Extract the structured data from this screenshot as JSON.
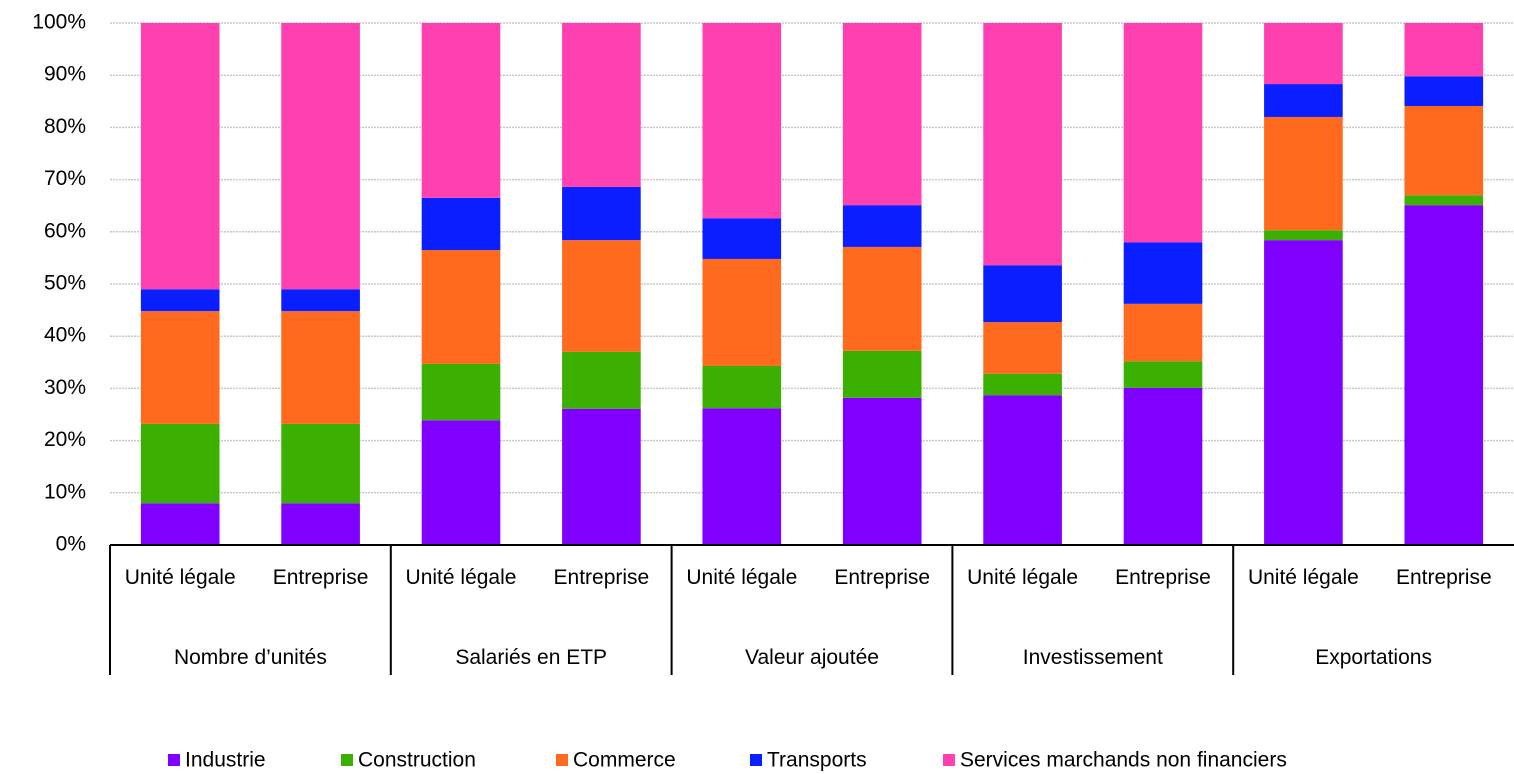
{
  "chart_data": {
    "type": "stacked_bar",
    "categories": [
      "Unité légale",
      "Entreprise",
      "Unité légale",
      "Entreprise",
      "Unité légale",
      "Entreprise",
      "Unité légale",
      "Entreprise",
      "Unité légale",
      "Entreprise"
    ],
    "groups": [
      "Nombre d’unités",
      "Salariés en ETP",
      "Valeur ajoutée",
      "Investissement",
      "Exportations"
    ],
    "series": [
      {
        "name": "Industrie",
        "color": "#8000ff",
        "values": [
          8.0,
          8.0,
          23.9,
          26.1,
          26.2,
          28.2,
          28.7,
          30.1,
          58.4,
          65.1
        ]
      },
      {
        "name": "Construction",
        "color": "#3cb000",
        "values": [
          15.2,
          15.2,
          10.8,
          10.9,
          8.1,
          9.0,
          4.1,
          5.1,
          1.9,
          1.9
        ]
      },
      {
        "name": "Commerce",
        "color": "#ff6a1f",
        "values": [
          21.6,
          21.6,
          21.8,
          21.4,
          20.5,
          19.9,
          9.9,
          11.0,
          21.7,
          17.1
        ]
      },
      {
        "name": "Transports",
        "color": "#0a1eff",
        "values": [
          4.2,
          4.2,
          10.0,
          10.2,
          7.8,
          8.0,
          10.9,
          11.8,
          6.3,
          5.7
        ]
      },
      {
        "name": "Services marchands non financiers",
        "color": "#ff40b0",
        "values": [
          51.0,
          51.0,
          33.5,
          31.4,
          37.4,
          34.9,
          46.4,
          42.0,
          11.7,
          10.2
        ]
      }
    ],
    "ylim": [
      0,
      100
    ],
    "yticks": [
      {
        "value": 0,
        "label": "0%"
      },
      {
        "value": 10,
        "label": "10%"
      },
      {
        "value": 20,
        "label": "20%"
      },
      {
        "value": 30,
        "label": "30%"
      },
      {
        "value": 40,
        "label": "40%"
      },
      {
        "value": 50,
        "label": "50%"
      },
      {
        "value": 60,
        "label": "60%"
      },
      {
        "value": 70,
        "label": "70%"
      },
      {
        "value": 80,
        "label": "80%"
      },
      {
        "value": 90,
        "label": "90%"
      },
      {
        "value": 100,
        "label": "100%"
      }
    ],
    "grid": true,
    "legend": "bottom"
  }
}
